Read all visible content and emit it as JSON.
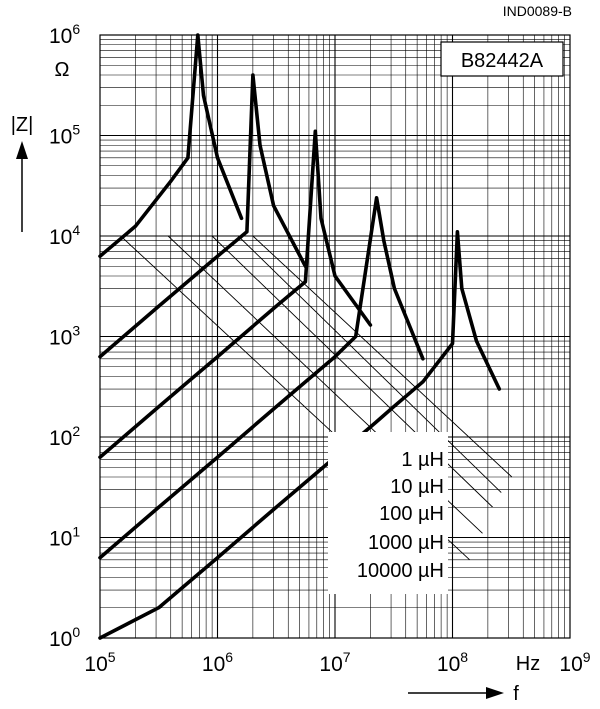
{
  "figure_id": "IND0089-B",
  "part_number": "B82442A",
  "chart_data": {
    "type": "line",
    "title": "",
    "xlabel": "f",
    "xunit": "Hz",
    "ylabel": "|Z|",
    "yunit": "Ω",
    "xscale": "log",
    "yscale": "log",
    "xlim": [
      100000,
      1000000000
    ],
    "ylim": [
      1,
      1000000
    ],
    "x_ticks": [
      {
        "base": "10",
        "exp": "5",
        "value": 100000
      },
      {
        "base": "10",
        "exp": "6",
        "value": 1000000
      },
      {
        "base": "10",
        "exp": "7",
        "value": 10000000
      },
      {
        "base": "10",
        "exp": "8",
        "value": 100000000
      },
      {
        "base": "10",
        "exp": "9",
        "value": 1000000000
      }
    ],
    "y_ticks": [
      {
        "base": "10",
        "exp": "0",
        "value": 1
      },
      {
        "base": "10",
        "exp": "1",
        "value": 10
      },
      {
        "base": "10",
        "exp": "2",
        "value": 100
      },
      {
        "base": "10",
        "exp": "3",
        "value": 1000
      },
      {
        "base": "10",
        "exp": "4",
        "value": 10000
      },
      {
        "base": "10",
        "exp": "5",
        "value": 100000
      },
      {
        "base": "10",
        "exp": "6",
        "value": 1000000
      }
    ],
    "grid": true,
    "legend": "bottom-right",
    "series": [
      {
        "name": "1 µH",
        "x": [
          100000,
          316000,
          1000000,
          3160000,
          10000000,
          22000000,
          31600000,
          56000000,
          100000000,
          110000000,
          120000000,
          160000000,
          250000000
        ],
        "y": [
          1,
          2,
          6.3,
          20,
          63,
          138,
          200,
          354,
          850,
          11000,
          3000,
          900,
          300
        ]
      },
      {
        "name": "10 µH",
        "x": [
          100000,
          316000,
          1000000,
          3160000,
          10000000,
          15000000,
          22600000,
          26000000,
          32000000,
          56000000
        ],
        "y": [
          6.3,
          20,
          63,
          200,
          630,
          1000,
          24000,
          9000,
          3000,
          600
        ]
      },
      {
        "name": "100 µH",
        "x": [
          100000,
          316000,
          1000000,
          3160000,
          5600000,
          6800000,
          7600000,
          10000000,
          20000000
        ],
        "y": [
          63,
          200,
          630,
          2000,
          3500,
          110000,
          15000,
          4000,
          1300
        ]
      },
      {
        "name": "1000 µH",
        "x": [
          100000,
          316000,
          1000000,
          1780000,
          2000000,
          2300000,
          3000000,
          5600000
        ],
        "y": [
          630,
          2000,
          6300,
          11000,
          400000,
          80000,
          20000,
          5000
        ]
      },
      {
        "name": "10000 µH",
        "x": [
          100000,
          200000,
          400000,
          560000,
          680000,
          760000,
          1000000,
          1600000
        ],
        "y": [
          6300,
          12500,
          35000,
          60000,
          1000000,
          250000,
          60000,
          15000
        ]
      }
    ],
    "guide_lines": [
      {
        "name": "1 µH",
        "x1": 2000000,
        "y1": 10000,
        "x2": 320000000,
        "y2": 40
      },
      {
        "name": "10 µH",
        "x1": 1500000,
        "y1": 10000,
        "x2": 260000000,
        "y2": 28
      },
      {
        "name": "100 µH",
        "x1": 900000,
        "y1": 10000,
        "x2": 220000000,
        "y2": 20
      },
      {
        "name": "1000 µH",
        "x1": 380000,
        "y1": 10000,
        "x2": 180000000,
        "y2": 11
      },
      {
        "name": "10000 µH",
        "x1": 150000,
        "y1": 10000,
        "x2": 140000000,
        "y2": 6
      }
    ]
  }
}
